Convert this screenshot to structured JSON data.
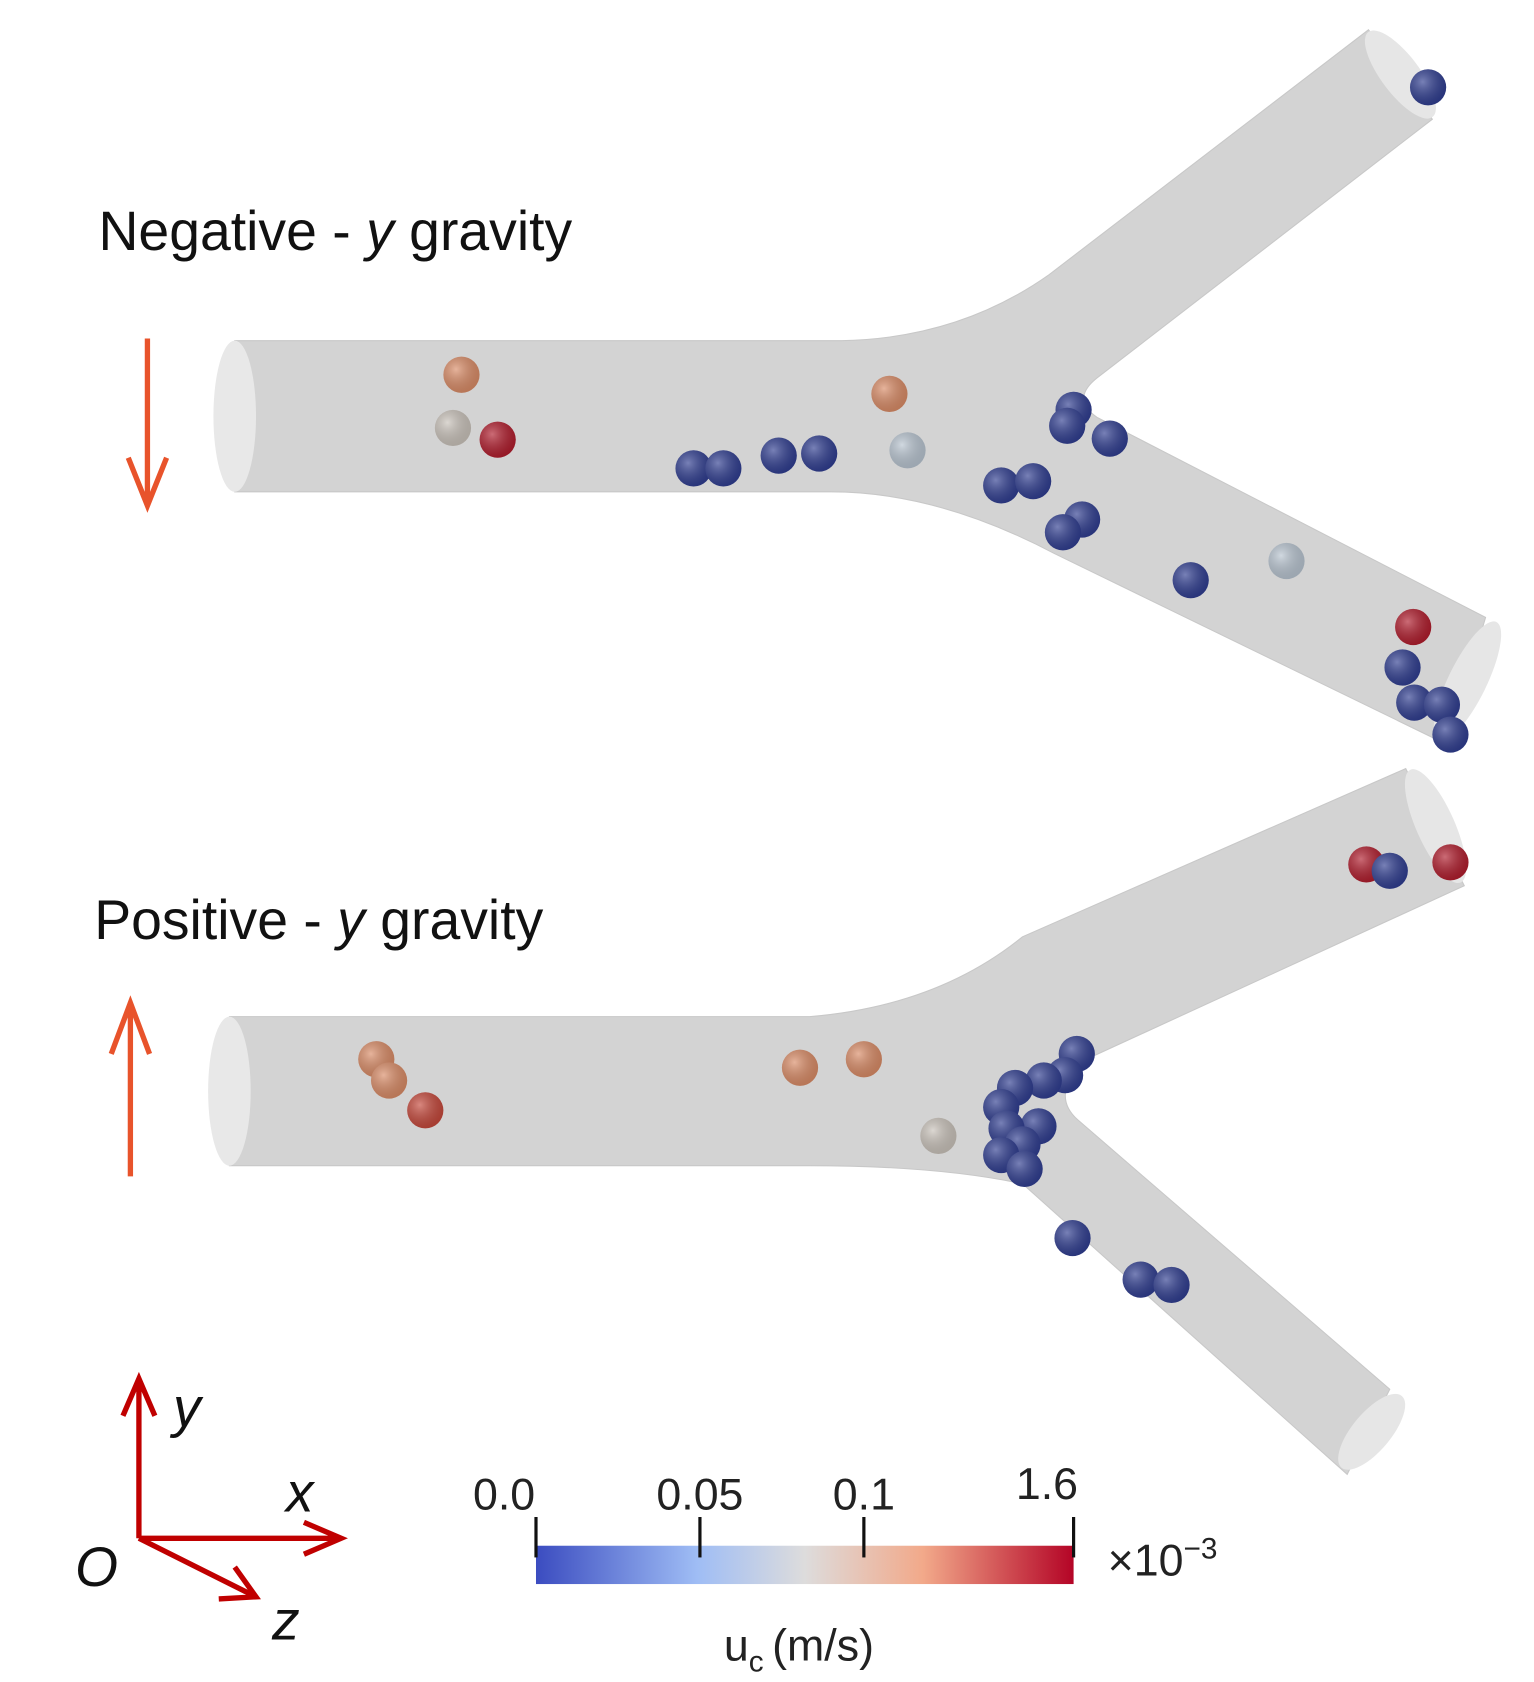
{
  "panels": [
    {
      "prefix": "Negative -",
      "variable": "y",
      "suffix": "gravity"
    },
    {
      "prefix": "Positive -",
      "variable": "y",
      "suffix": "gravity"
    }
  ],
  "axes": {
    "origin": "O",
    "x": "x",
    "y": "y",
    "z": "z"
  },
  "colorbar": {
    "ticks": [
      "0.0",
      "0.05",
      "0.1",
      "1.6"
    ],
    "multiplier": "×10",
    "exponent": "−3",
    "label_symbol": "u",
    "label_subscript": "c",
    "label_unit": "(m/s)"
  }
}
